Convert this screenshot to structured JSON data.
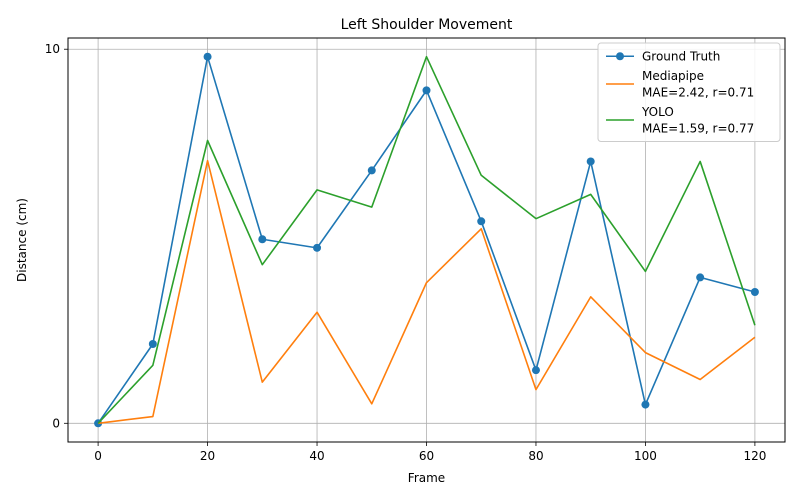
{
  "chart_data": {
    "type": "line",
    "title": "Left Shoulder Movement",
    "xlabel": "Frame",
    "ylabel": "Distance (cm)",
    "xlim": [
      -5.5,
      125.5
    ],
    "ylim": [
      -0.5,
      10.3
    ],
    "xticks": [
      0,
      20,
      40,
      60,
      80,
      100,
      120
    ],
    "yticks": [
      0,
      10
    ],
    "grid": true,
    "legend_position": "top-right",
    "x": [
      0,
      10,
      20,
      30,
      40,
      50,
      60,
      70,
      80,
      90,
      100,
      110,
      120
    ],
    "series": [
      {
        "name": "Ground Truth",
        "legend_lines": [
          "Ground Truth"
        ],
        "color": "#1f77b4",
        "marker": "circle",
        "values": [
          0.0,
          2.12,
          9.8,
          4.92,
          4.69,
          6.76,
          8.9,
          5.4,
          1.42,
          7.0,
          0.5,
          3.9,
          3.51
        ]
      },
      {
        "name": "Mediapipe\nMAE=2.42, r=0.71",
        "legend_lines": [
          "Mediapipe",
          "MAE=2.42, r=0.71"
        ],
        "color": "#ff7f0e",
        "marker": "none",
        "values": [
          0.0,
          0.18,
          7.02,
          1.1,
          2.97,
          0.52,
          3.76,
          5.2,
          0.9,
          3.38,
          1.89,
          1.17,
          2.3
        ]
      },
      {
        "name": "YOLO\nMAE=1.59, r=0.77",
        "legend_lines": [
          "YOLO",
          "MAE=1.59, r=0.77"
        ],
        "color": "#2ca02c",
        "marker": "none",
        "values": [
          0.0,
          1.55,
          7.56,
          4.24,
          6.24,
          5.78,
          9.8,
          6.63,
          5.47,
          6.12,
          4.06,
          7.0,
          2.62
        ]
      }
    ]
  }
}
